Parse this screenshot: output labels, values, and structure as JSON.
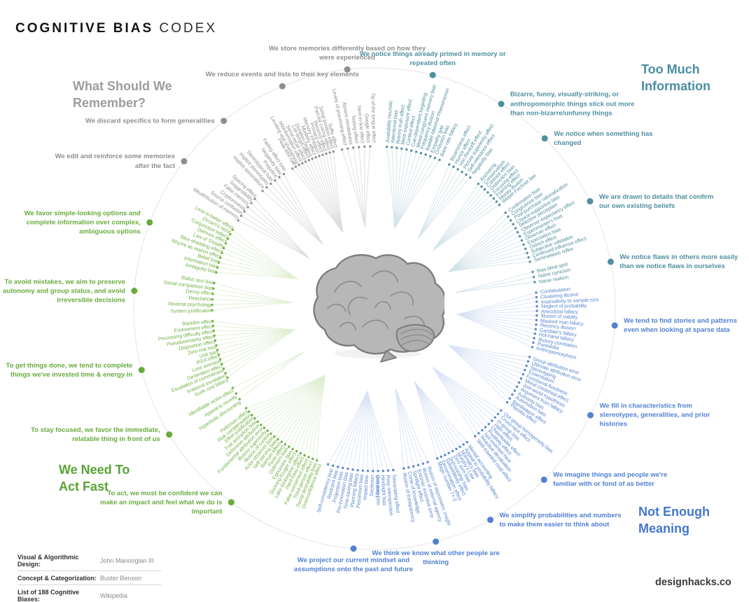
{
  "title": {
    "primary": "COGNITIVE BIAS",
    "secondary": "CODEX"
  },
  "brand": "designhacks.co",
  "credits": [
    {
      "label": "Visual & Algorithmic Design:",
      "value": "John Manoogian III"
    },
    {
      "label": "Concept & Categorization:",
      "value": "Buster Benson"
    },
    {
      "label": "List of 188 Cognitive Biases:",
      "value": "Wikipedia"
    }
  ],
  "quadrants": {
    "remember": {
      "title": "What Should We Remember?",
      "header_color": "#9c9c9c",
      "label_color": "#8f8f8f",
      "annotation_color": "#8f8f8f",
      "line_color": "#dedede"
    },
    "too_much": {
      "title": "Too Much Information",
      "header_color": "#4a8da2",
      "label_color": "#55919f",
      "annotation_color": "#4f8fa0",
      "line_color": "#d4e4e8"
    },
    "not_enough": {
      "title": "Not Enough Meaning",
      "header_color": "#4577d0",
      "label_color": "#5b87d0",
      "annotation_color": "#5181d2",
      "line_color": "#d9e3f5"
    },
    "act_fast": {
      "title": "We Need To Act Fast",
      "header_color": "#58a334",
      "label_color": "#74b24a",
      "annotation_color": "#68ab3d",
      "line_color": "#e0efd3"
    }
  },
  "clusters": [
    {
      "quadrant": "act_fast",
      "a0": 200,
      "a1": 233,
      "annotation": "To act, we must be confident we can make an impact and feel what we do is important",
      "labels": [
        "Overconfidence effect",
        "Social desirability bias",
        "Third-person effect",
        "False consensus effect",
        "Hard-easy effect",
        "Lake Wobegone effect",
        "Dunning-Kruger effect",
        "Egocentric bias",
        "Optimism bias",
        "Forer effect",
        "Barnum effect",
        "Self-serving bias",
        "Actor-observer bias",
        "Illusion of control",
        "Illusory superiority",
        "Fundamental attribution error",
        "Defensive attribution",
        "Trait ascription bias",
        "Effort justification",
        "Risk compensation",
        "Peltzman effect"
      ]
    },
    {
      "quadrant": "act_fast",
      "a0": 235,
      "a1": 242,
      "annotation": "To stay focused, we favor the immediate, relatable thing in front of us",
      "labels": [
        "Hyperbolic discounting",
        "Appeal to novelty",
        "Identifiable victim effect"
      ]
    },
    {
      "quadrant": "act_fast",
      "a0": 244,
      "a1": 266.5,
      "annotation": "To get things done, we tend to complete things we've invested time & energy in",
      "labels": [
        "Sunk cost fallacy",
        "Irrational escalation",
        "Escalation of commitment",
        "Generation effect",
        "Loss aversion",
        "IKEA effect",
        "Unit bias",
        "Zero-risk bias",
        "Disposition effect",
        "Pseudocertainty effect",
        "Processing difficulty effect",
        "Endowment effect",
        "Backfire effect"
      ]
    },
    {
      "quadrant": "act_fast",
      "a0": 268.5,
      "a1": 280,
      "annotation": "To avoid mistakes, we aim to preserve autonomy and group status, and avoid irreversible decisions",
      "labels": [
        "System justification",
        "Reverse psychology",
        "Reactance",
        "Decoy effect",
        "Social comparison bias",
        "Status quo bias"
      ]
    },
    {
      "quadrant": "act_fast",
      "a0": 282,
      "a1": 300,
      "annotation": "We favor simple-looking options and complete information over complex, ambiguous options",
      "labels": [
        "Ambiguity bias",
        "Information bias",
        "Belief bias",
        "Rhyme as reason effect",
        "Bike-shedding effect",
        "Law of Triviality",
        "Delmore effect",
        "Conjunction fallacy",
        "Occam's razor",
        "Less-is-better effect"
      ]
    },
    {
      "quadrant": "remember",
      "a0": 302,
      "a1": 313.5,
      "annotation": "We edit and reinforce some memories after the fact",
      "labels": [
        "Misattribution of memory",
        "Source confusion",
        "Cryptomnesia",
        "False memory",
        "Suggestibility",
        "Spacing effect"
      ]
    },
    {
      "quadrant": "remember",
      "a0": 315.5,
      "a1": 327,
      "annotation": "We discard specifics to form generalities",
      "labels": [
        "Implicit associations",
        "Implicit stereotypes",
        "Stereotypical bias",
        "Prejudice",
        "Negativity bias",
        "Fading affect bias"
      ]
    },
    {
      "quadrant": "remember",
      "a0": 329,
      "a1": 346,
      "annotation": "We reduce events and lists to their key elements",
      "labels": [
        "Peak-end rule",
        "Leveling and sharpening",
        "Misinformation effect",
        "Serial recall effect",
        "List-length effect",
        "Duration neglect",
        "Modality effect",
        "Memory inhibition",
        "Primacy effect",
        "Recency effect",
        "Part-list cueing effect",
        "Serial position effect",
        "Suffix effect"
      ]
    },
    {
      "quadrant": "remember",
      "a0": 347.5,
      "a1": 359.5,
      "annotation": "We store memories differently based on how they were experienced",
      "labels": [
        "Levels of processing effect",
        "Absent-mindedness",
        "Testing effect",
        "Next-in-line effect",
        "Google effect",
        "Tip of the tongue effect"
      ]
    },
    {
      "quadrant": "too_much",
      "a0": 3.5,
      "a1": 24.5,
      "annotation": "We notice things already primed in memory or repeated often",
      "labels": [
        "Availability heuristic",
        "Attentional bias",
        "Illusory truth effect",
        "Mere exposure effect",
        "Context effect",
        "Cue-dependent forgetting",
        "Mood-congruent memory bias",
        "Frequency illusion",
        "Baader-Meinhof Phenomenon",
        "Empathy gap",
        "Omission bias",
        "Base rate fallacy"
      ]
    },
    {
      "quadrant": "too_much",
      "a0": 26.5,
      "a1": 37,
      "annotation": "Bizarre, funny, visually-striking, or anthropomorphic things stick out more than non-bizarre/unfunny things",
      "labels": [
        "Bizarreness effect",
        "Humor effect",
        "Von Restorff effect",
        "Picture superiority effect",
        "Self-relevance effect",
        "Negativity bias"
      ]
    },
    {
      "quadrant": "too_much",
      "a0": 39,
      "a1": 51,
      "annotation": "We notice when something has changed",
      "labels": [
        "Anchoring",
        "Conservatism",
        "Contrast effect",
        "Distinction bias",
        "Focusing effect",
        "Framing effect",
        "Money illusion",
        "Weber-Fechner law"
      ]
    },
    {
      "quadrant": "too_much",
      "a0": 53,
      "a1": 74,
      "annotation": "We are drawn to details that confirm our own existing beliefs",
      "labels": [
        "Confirmation bias",
        "Congruence bias",
        "Post-purchase rationalization",
        "Choice-supportive bias",
        "Selective perception",
        "Observer-expectancy effect",
        "Experimenter's bias",
        "Observer effect",
        "Expectation bias",
        "Ostrich effect",
        "Subjective validation",
        "Continued influence effect",
        "Semmelweis reflex"
      ]
    },
    {
      "quadrant": "too_much",
      "a0": 76,
      "a1": 81.5,
      "annotation": "We notice flaws in others more easily than we notice flaws in ourselves",
      "labels": [
        "Bias blind spot",
        "Naïve cynicism",
        "Naïve realism"
      ]
    },
    {
      "quadrant": "not_enough",
      "a0": 83.5,
      "a1": 104.5,
      "annotation": "We tend to find stories and patterns even when looking at sparse data",
      "labels": [
        "Confabulation",
        "Clustering illusion",
        "Insensitivity to sample size",
        "Neglect of probability",
        "Anecdotal fallacy",
        "Illusion of validity",
        "Masked man fallacy",
        "Recency illusion",
        "Gambler's fallacy",
        "Hot-hand fallacy",
        "Illusory correlation",
        "Pareidolia",
        "Anthropomorphism"
      ]
    },
    {
      "quadrant": "not_enough",
      "a0": 106.5,
      "a1": 126,
      "annotation": "We fill in characteristics from stereotypes, generalities, and prior histories",
      "labels": [
        "Group attribution error",
        "Ultimate attribution error",
        "Stereotyping",
        "Essentialism",
        "Functional fixedness",
        "Moral credential effect",
        "Just-world hypothesis",
        "Argument from fallacy",
        "Authority bias",
        "Automation bias",
        "Bandwagon effect",
        "Placebo effect"
      ]
    },
    {
      "quadrant": "not_enough",
      "a0": 128,
      "a1": 142.5,
      "annotation": "We imagine things and people we're familiar with or fond of as better",
      "labels": [
        "Out-group homogeneity bias",
        "Cross-race effect",
        "In-group bias",
        "Halo effect",
        "Cheerleader effect",
        "Positivity effect",
        "Not invented here",
        "Reactive devaluation",
        "Well-traveled road effect"
      ]
    },
    {
      "quadrant": "not_enough",
      "a0": 144.5,
      "a1": 158,
      "annotation": "We simplify probabilities and numbers to make them easier to think about",
      "labels": [
        "Mental accounting",
        "Appeal to probability fallacy",
        "Normalcy bias",
        "Murphy's Law",
        "Zero sum bias",
        "Survivorship bias",
        "Subadditivity effect",
        "Denomination effect",
        "Magic number 7+-2"
      ]
    },
    {
      "quadrant": "not_enough",
      "a0": 160,
      "a1": 170.5,
      "annotation": "We think we know what other people are thinking",
      "labels": [
        "Illusion of asymmetric insight",
        "Illusion of external agency",
        "Extrinsic incentive error",
        "Spotlight effect",
        "Curse of knowledge",
        "Illusion of transparency"
      ]
    },
    {
      "quadrant": "not_enough",
      "a0": 172.5,
      "a1": 197.5,
      "annotation": "We project our current mindset and assumptions onto the past and future",
      "labels": [
        "Telescoping effect",
        "Rosy retrospection",
        "Hindsight bias",
        "Outcome bias",
        "Moral luck",
        "Declinism",
        "Impact bias",
        "Pessimism bias",
        "Planning fallacy",
        "Time-saving bias",
        "Pro-innovation bias",
        "Projection bias",
        "Restraint bias",
        "Self-consistency bias"
      ]
    }
  ]
}
